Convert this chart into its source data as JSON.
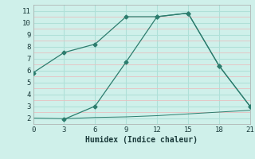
{
  "line1_x": [
    0,
    3,
    6,
    9,
    12,
    15,
    18,
    21
  ],
  "line1_y": [
    5.8,
    7.5,
    8.2,
    10.5,
    10.5,
    10.8,
    6.4,
    3.0
  ],
  "line2_x": [
    3,
    6,
    9,
    12,
    15,
    18,
    21
  ],
  "line2_y": [
    1.9,
    3.0,
    6.7,
    10.5,
    10.8,
    6.4,
    3.0
  ],
  "flat_x": [
    0,
    3,
    6,
    9,
    12,
    15,
    18,
    21
  ],
  "flat_y": [
    2.0,
    1.95,
    2.05,
    2.1,
    2.2,
    2.35,
    2.5,
    2.65
  ],
  "line_color": "#2d7d6e",
  "bg_color": "#cff0ea",
  "major_grid_color": "#b0e0d8",
  "minor_grid_color": "#e8c0c0",
  "xlabel": "Humidex (Indice chaleur)",
  "xlim": [
    0,
    21
  ],
  "ylim": [
    1.5,
    11.5
  ],
  "xticks": [
    0,
    3,
    6,
    9,
    12,
    15,
    18,
    21
  ],
  "yticks": [
    2,
    3,
    4,
    5,
    6,
    7,
    8,
    9,
    10,
    11
  ],
  "tick_fontsize": 6.5,
  "xlabel_fontsize": 7
}
